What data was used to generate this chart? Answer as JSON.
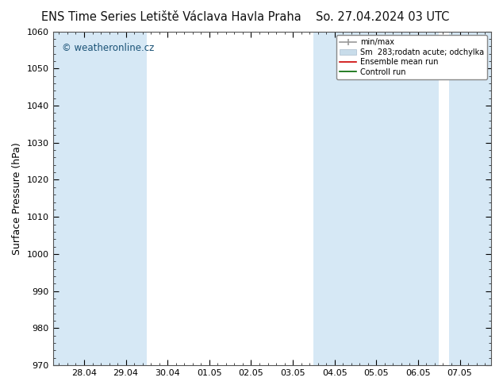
{
  "title_left": "ENS Time Series Letiště Václava Havla Praha",
  "title_right": "So. 27.04.2024 03 UTC",
  "ylabel": "Surface Pressure (hPa)",
  "ylim": [
    970,
    1060
  ],
  "yticks": [
    970,
    980,
    990,
    1000,
    1010,
    1020,
    1030,
    1040,
    1050,
    1060
  ],
  "xlabels": [
    "28.04",
    "29.04",
    "30.04",
    "01.05",
    "02.05",
    "03.05",
    "04.05",
    "05.05",
    "06.05",
    "07.05"
  ],
  "band_color": "#d6e8f5",
  "background_color": "#ffffff",
  "legend_entries": [
    "min/max",
    "Sm  283;rodatn acute; odchylka",
    "Ensemble mean run",
    "Controll run"
  ],
  "watermark": "© weatheronline.cz",
  "watermark_color": "#1a5276",
  "title_fontsize": 10.5,
  "axis_label_fontsize": 9,
  "tick_fontsize": 8
}
